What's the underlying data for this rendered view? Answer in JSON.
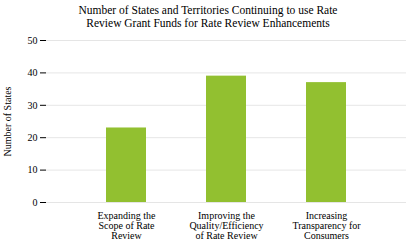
{
  "chart_data": {
    "type": "bar",
    "title": "Number of States and Territories  Continuing to use Rate\nReview Grant Funds for Rate Review Enhancements",
    "categories": [
      "Expanding the\nScope of Rate\nReview",
      "Improving the\nQuality/Efficiency\nof Rate Review",
      "Increasing\nTransparency for\nConsumers"
    ],
    "values": [
      23,
      39,
      37
    ],
    "color": "#92C030",
    "ylabel": "Number of States",
    "ylim": [
      0,
      50
    ],
    "yticks": [
      0,
      10,
      20,
      30,
      40,
      50
    ],
    "grid": true
  }
}
